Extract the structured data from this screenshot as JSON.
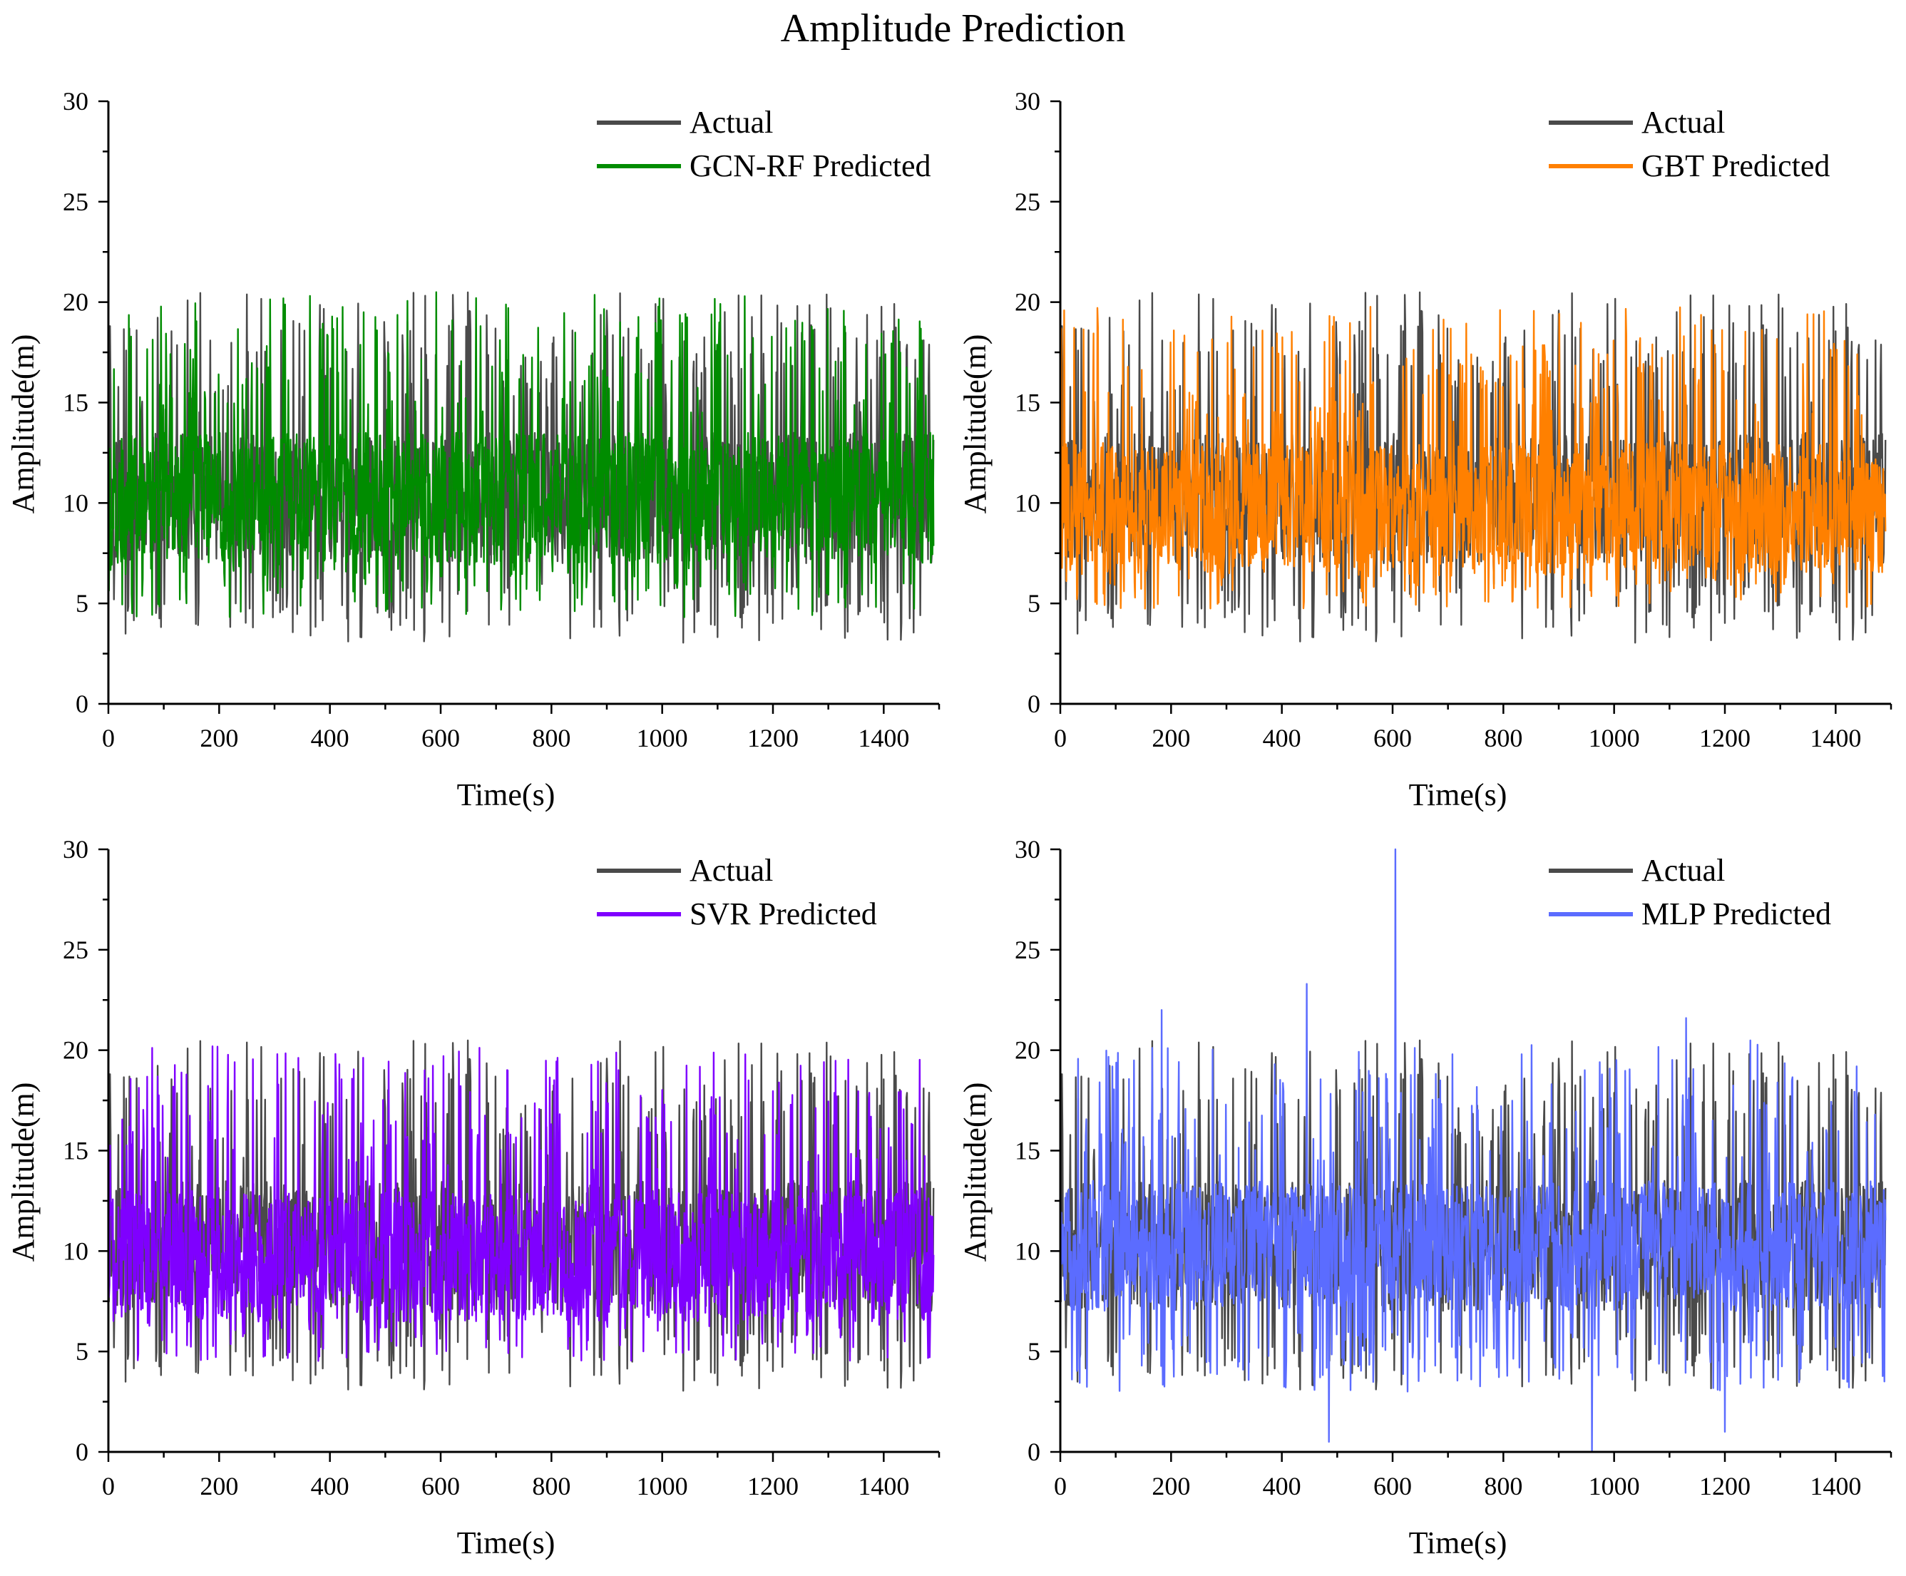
{
  "figure": {
    "title": "Amplitude Prediction"
  },
  "chart_data": [
    {
      "type": "line",
      "xlabel": "Time(s)",
      "ylabel": "Amplitude(m)",
      "xlim": [
        0,
        1500
      ],
      "ylim": [
        0,
        30
      ],
      "xticks": [
        0,
        200,
        400,
        600,
        800,
        1000,
        1200,
        1400
      ],
      "yticks": [
        0,
        5,
        10,
        15,
        20,
        25,
        30
      ],
      "legend_position": "top-right",
      "series": [
        {
          "name": "Actual",
          "color": "#4a4a4a",
          "baseline": 10.5,
          "range": [
            3.0,
            20.5
          ],
          "seed": 11
        },
        {
          "name": "GCN-RF Predicted",
          "color": "#008c00",
          "baseline": 10.5,
          "range": [
            4.3,
            20.5
          ],
          "seed": 21
        }
      ]
    },
    {
      "type": "line",
      "xlabel": "Time(s)",
      "ylabel": "Amplitude(m)",
      "xlim": [
        0,
        1500
      ],
      "ylim": [
        0,
        30
      ],
      "xticks": [
        0,
        200,
        400,
        600,
        800,
        1000,
        1200,
        1400
      ],
      "yticks": [
        0,
        5,
        10,
        15,
        20,
        25,
        30
      ],
      "legend_position": "top-right",
      "series": [
        {
          "name": "Actual",
          "color": "#4a4a4a",
          "baseline": 10.5,
          "range": [
            3.0,
            20.5
          ],
          "seed": 11
        },
        {
          "name": "GBT Predicted",
          "color": "#ff8000",
          "baseline": 10.0,
          "range": [
            4.7,
            19.8
          ],
          "seed": 31
        }
      ]
    },
    {
      "type": "line",
      "xlabel": "Time(s)",
      "ylabel": "Amplitude(m)",
      "xlim": [
        0,
        1500
      ],
      "ylim": [
        0,
        30
      ],
      "xticks": [
        0,
        200,
        400,
        600,
        800,
        1000,
        1200,
        1400
      ],
      "yticks": [
        0,
        5,
        10,
        15,
        20,
        25,
        30
      ],
      "legend_position": "top-right",
      "series": [
        {
          "name": "Actual",
          "color": "#4a4a4a",
          "baseline": 10.5,
          "range": [
            3.0,
            20.5
          ],
          "seed": 11
        },
        {
          "name": "SVR Predicted",
          "color": "#7f00ff",
          "baseline": 10.0,
          "range": [
            4.5,
            20.2
          ],
          "seed": 41
        }
      ]
    },
    {
      "type": "line",
      "xlabel": "Time(s)",
      "ylabel": "Amplitude(m)",
      "xlim": [
        0,
        1500
      ],
      "ylim": [
        0,
        30
      ],
      "xticks": [
        0,
        200,
        400,
        600,
        800,
        1000,
        1200,
        1400
      ],
      "yticks": [
        0,
        5,
        10,
        15,
        20,
        25,
        30
      ],
      "legend_position": "top-right",
      "series": [
        {
          "name": "Actual",
          "color": "#4a4a4a",
          "baseline": 10.5,
          "range": [
            3.0,
            20.5
          ],
          "seed": 11
        },
        {
          "name": "MLP Predicted",
          "color": "#5b6cff",
          "baseline": 10.5,
          "range": [
            0.0,
            30.0
          ],
          "seed": 51,
          "spikes": [
            [
              485,
              0.5
            ],
            [
              605,
              30.0
            ],
            [
              445,
              23.3
            ],
            [
              960,
              0.0
            ],
            [
              1200,
              1.0
            ],
            [
              183,
              22.0
            ],
            [
              1130,
              21.6
            ]
          ]
        }
      ]
    }
  ]
}
